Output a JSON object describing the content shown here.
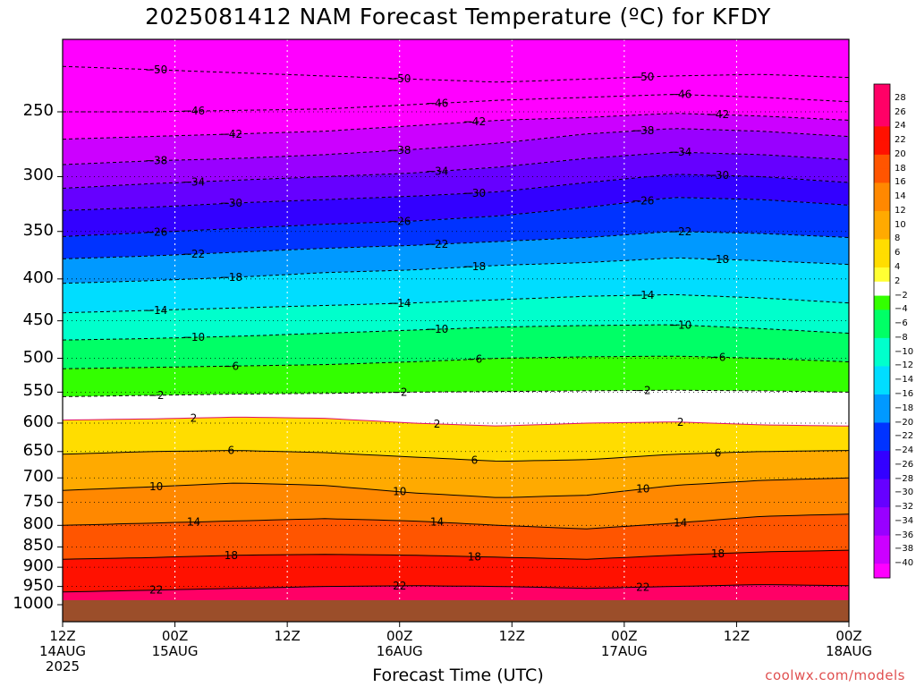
{
  "title": "2025081412 NAM Forecast Temperature (ºC) for KFDY",
  "credit": "coolwx.com/models",
  "chart_data": {
    "type": "heatmap",
    "title": "2025081412 NAM Forecast Temperature (ºC) for KFDY",
    "xlabel": "Forecast Time (UTC)",
    "ylabel": "",
    "x_ticks": [
      {
        "hour": 0,
        "lines": [
          "12Z",
          "14AUG",
          "2025"
        ]
      },
      {
        "hour": 12,
        "lines": [
          "00Z",
          "15AUG"
        ]
      },
      {
        "hour": 24,
        "lines": [
          "12Z"
        ]
      },
      {
        "hour": 36,
        "lines": [
          "00Z",
          "16AUG"
        ]
      },
      {
        "hour": 48,
        "lines": [
          "12Z"
        ]
      },
      {
        "hour": 60,
        "lines": [
          "00Z",
          "17AUG"
        ]
      },
      {
        "hour": 72,
        "lines": [
          "12Z"
        ]
      },
      {
        "hour": 84,
        "lines": [
          "00Z",
          "18AUG"
        ]
      }
    ],
    "xlim": [
      0,
      84
    ],
    "y_scale": "log-pressure",
    "y_ticks": [
      250,
      300,
      350,
      400,
      450,
      500,
      550,
      600,
      650,
      700,
      750,
      800,
      850,
      900,
      950,
      1000
    ],
    "ylim": [
      1030,
      200
    ],
    "grid": true,
    "colorbar": {
      "ticks": [
        28,
        26,
        24,
        22,
        20,
        18,
        16,
        14,
        12,
        10,
        8,
        6,
        4,
        2,
        -2,
        -4,
        -6,
        -8,
        -10,
        -12,
        -14,
        -16,
        -18,
        -20,
        -22,
        -24,
        -26,
        -28,
        -30,
        -32,
        -34,
        -36,
        -38,
        -40
      ],
      "colors": [
        "#ff0099",
        "#ff0066",
        "#ff0033",
        "#ff0000",
        "#ff3300",
        "#ff6600",
        "#ff8800",
        "#ffaa00",
        "#ffcc00",
        "#ffee00",
        "#ffff33",
        "#ffffff",
        "#33ff00",
        "#00ff66",
        "#00ffaa",
        "#00ffdd",
        "#00ffff",
        "#00ccff",
        "#0099ff",
        "#0066ff",
        "#0033ff",
        "#3300ff",
        "#6600ff",
        "#9900ff",
        "#cc00ff",
        "#ff00ff"
      ]
    },
    "isotherm_labels": [
      -50,
      -46,
      -42,
      -38,
      -34,
      -30,
      -26,
      -22,
      -18,
      -14,
      -10,
      -6,
      -2,
      2,
      6,
      10,
      14,
      18,
      22
    ],
    "isotherms": [
      {
        "t": -50,
        "p": [
          220,
          222,
          224,
          226,
          228,
          230,
          228,
          226,
          225,
          227
        ]
      },
      {
        "t": -46,
        "p": [
          250,
          250,
          249,
          248,
          245,
          242,
          240,
          238,
          240,
          243
        ]
      },
      {
        "t": -42,
        "p": [
          270,
          268,
          266,
          264,
          260,
          256,
          254,
          251,
          253,
          256
        ]
      },
      {
        "t": -38,
        "p": [
          290,
          287,
          285,
          282,
          278,
          273,
          266,
          262,
          264,
          268
        ]
      },
      {
        "t": -34,
        "p": [
          310,
          306,
          303,
          300,
          297,
          292,
          285,
          280,
          282,
          286
        ]
      },
      {
        "t": -30,
        "p": [
          330,
          327,
          323,
          320,
          317,
          313,
          305,
          298,
          300,
          305
        ]
      },
      {
        "t": -26,
        "p": [
          355,
          351,
          347,
          343,
          340,
          335,
          327,
          318,
          320,
          325
        ]
      },
      {
        "t": -22,
        "p": [
          378,
          375,
          371,
          367,
          364,
          360,
          356,
          350,
          352,
          356
        ]
      },
      {
        "t": -18,
        "p": [
          405,
          402,
          398,
          393,
          390,
          385,
          382,
          377,
          380,
          384
        ]
      },
      {
        "t": -14,
        "p": [
          440,
          437,
          434,
          431,
          428,
          424,
          420,
          418,
          422,
          428
        ]
      },
      {
        "t": -10,
        "p": [
          475,
          473,
          470,
          466,
          462,
          458,
          456,
          455,
          460,
          466
        ]
      },
      {
        "t": -6,
        "p": [
          515,
          513,
          511,
          509,
          505,
          500,
          498,
          497,
          500,
          505
        ]
      },
      {
        "t": -2,
        "p": [
          557,
          555,
          553,
          552,
          550,
          549,
          548,
          547,
          548,
          550
        ]
      },
      {
        "t": 2,
        "p": [
          595,
          593,
          590,
          592,
          600,
          605,
          600,
          598,
          603,
          605
        ]
      },
      {
        "t": 6,
        "p": [
          655,
          650,
          648,
          652,
          660,
          668,
          665,
          655,
          650,
          648
        ]
      },
      {
        "t": 10,
        "p": [
          725,
          718,
          710,
          715,
          730,
          740,
          735,
          715,
          705,
          700
        ]
      },
      {
        "t": 14,
        "p": [
          800,
          795,
          790,
          785,
          790,
          800,
          808,
          795,
          780,
          775
        ]
      },
      {
        "t": 18,
        "p": [
          880,
          876,
          870,
          868,
          870,
          875,
          880,
          870,
          862,
          858
        ]
      },
      {
        "t": 22,
        "p": [
          965,
          960,
          955,
          950,
          948,
          950,
          955,
          950,
          945,
          948
        ]
      }
    ],
    "ground_pressure": 1000
  }
}
